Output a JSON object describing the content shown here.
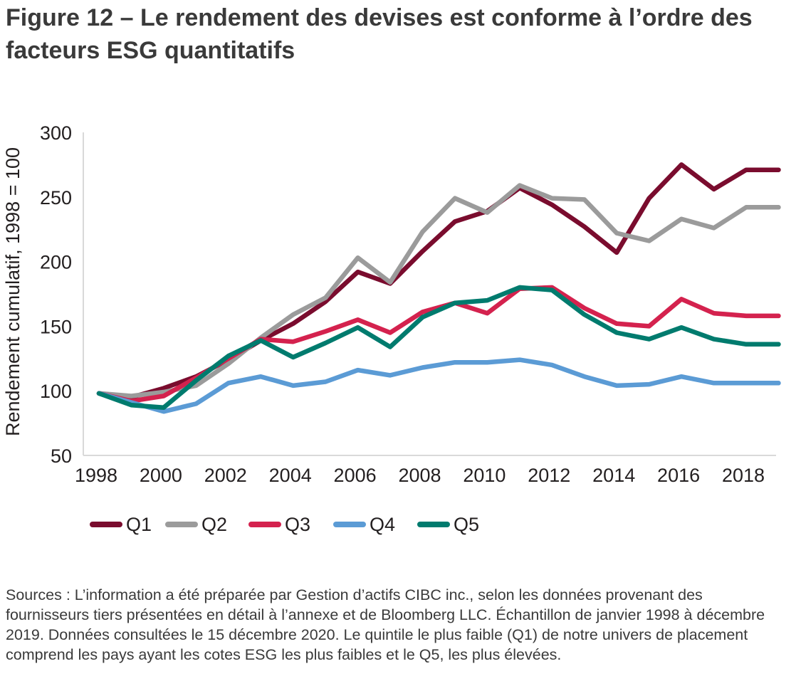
{
  "title": "Figure 12 – Le rendement des devises est conforme à l’ordre des facteurs ESG quantitatifs",
  "source": "Sources : L’information a été préparée par Gestion d’actifs CIBC inc., selon les données provenant des fournisseurs tiers présentées en détail à l’annexe et de Bloomberg LLC. Échantillon de janvier 1998 à décembre 2019. Données consultées le 15 décembre 2020. Le quintile le plus faible (Q1) de notre univers de placement comprend les pays ayant les cotes ESG les plus faibles et le Q5, les plus élevées.",
  "chart_data": {
    "type": "line",
    "xlabel": "",
    "ylabel": "Rendement cumulatif, 1998 = 100",
    "xlim": [
      1998,
      2019
    ],
    "ylim": [
      50,
      300
    ],
    "x_ticks": [
      1998,
      2000,
      2002,
      2004,
      2006,
      2008,
      2010,
      2012,
      2014,
      2016,
      2018
    ],
    "y_ticks": [
      50,
      100,
      150,
      200,
      250,
      300
    ],
    "x_tick_labels": [
      "1998",
      "2000",
      "2002",
      "2004",
      "2006",
      "2008",
      "2010",
      "2012",
      "2014",
      "2016",
      "2018"
    ],
    "y_tick_labels": [
      "50",
      "100",
      "150",
      "200",
      "250",
      "300"
    ],
    "grid": false,
    "legend_position": "bottom-left",
    "x": [
      1998,
      1999,
      2000,
      2001,
      2002,
      2003,
      2004,
      2005,
      2006,
      2007,
      2008,
      2009,
      2010,
      2011,
      2012,
      2013,
      2014,
      2015,
      2016,
      2017,
      2018,
      2019
    ],
    "series": [
      {
        "name": "Q1",
        "color": "#7a0c2e",
        "values": [
          98,
          95,
          102,
          111,
          124,
          139,
          152,
          169,
          192,
          183,
          208,
          231,
          239,
          257,
          244,
          227,
          207,
          249,
          275,
          256,
          271,
          271
        ]
      },
      {
        "name": "Q2",
        "color": "#9b9b9b",
        "values": [
          98,
          96,
          99,
          104,
          121,
          141,
          159,
          172,
          203,
          184,
          223,
          249,
          238,
          259,
          249,
          248,
          222,
          216,
          233,
          226,
          242,
          242
        ]
      },
      {
        "name": "Q3",
        "color": "#d4224e",
        "values": [
          98,
          92,
          96,
          110,
          125,
          140,
          138,
          146,
          155,
          145,
          161,
          168,
          160,
          179,
          180,
          164,
          152,
          150,
          171,
          160,
          158,
          158
        ]
      },
      {
        "name": "Q4",
        "color": "#5b9bd5",
        "values": [
          98,
          91,
          84,
          90,
          106,
          111,
          104,
          107,
          116,
          112,
          118,
          122,
          122,
          124,
          120,
          111,
          104,
          105,
          111,
          106,
          106,
          106
        ]
      },
      {
        "name": "Q5",
        "color": "#007b6e",
        "values": [
          98,
          89,
          87,
          108,
          127,
          139,
          126,
          137,
          149,
          134,
          157,
          168,
          170,
          180,
          178,
          159,
          145,
          140,
          149,
          140,
          136,
          136
        ]
      }
    ]
  }
}
